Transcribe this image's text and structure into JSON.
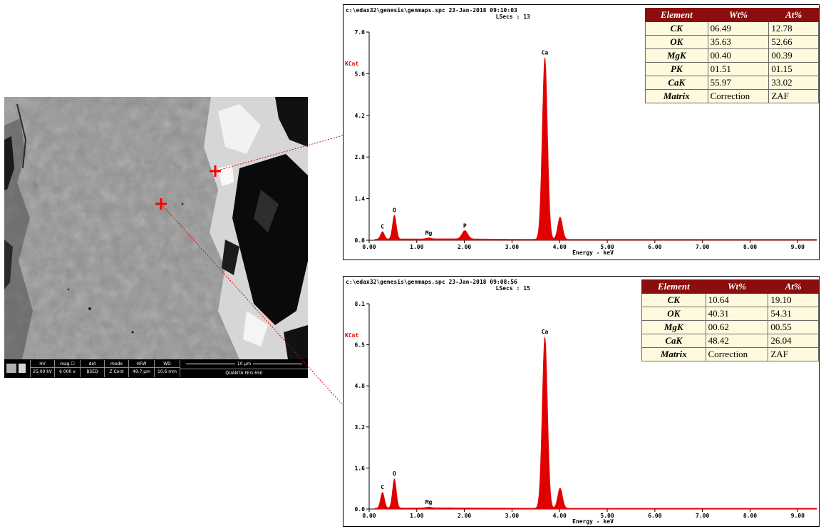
{
  "sem_image": {
    "info_bar": {
      "columns": [
        {
          "header": "HV",
          "value": "25.00 kV"
        },
        {
          "header": "mag ☐",
          "value": "6 000 x"
        },
        {
          "header": "det",
          "value": "BSED"
        },
        {
          "header": "mode",
          "value": "Z Cont"
        },
        {
          "header": "HFW",
          "value": "49.7 µm"
        },
        {
          "header": "WD",
          "value": "10.6 mm"
        }
      ],
      "scale_label": "10 µm",
      "instrument": "QUANTA FEG 650"
    }
  },
  "chart_data": [
    {
      "type": "line",
      "header_line1": "c:\\edax32\\genesis\\genmaps.spc  23-Jan-2018 09:10:03",
      "header_line2": "LSecs : 13",
      "ylabel": "KCnt",
      "xlabel": "Energy - keV",
      "xlim": [
        0,
        9.4
      ],
      "ylim": [
        0,
        7.0
      ],
      "x_tick_labels": [
        "0.00",
        "1.00",
        "2.00",
        "3.00",
        "4.00",
        "5.00",
        "6.00",
        "7.00",
        "8.00",
        "9.00"
      ],
      "y_tick_labels": [
        "0.0",
        "1.4",
        "2.8",
        "4.2",
        "5.6",
        "7.0"
      ],
      "peaks": [
        {
          "label": "C",
          "x": 0.28,
          "y": 0.25
        },
        {
          "label": "O",
          "x": 0.53,
          "y": 0.8
        },
        {
          "label": "Mg",
          "x": 1.25,
          "y": 0.03
        },
        {
          "label": "P",
          "x": 2.01,
          "y": 0.28
        },
        {
          "label": "Ca",
          "x": 3.69,
          "y": 6.1
        },
        {
          "label": "",
          "x": 4.01,
          "y": 0.75
        }
      ],
      "table": {
        "headers": [
          "Element",
          "Wt%",
          "At%"
        ],
        "rows": [
          [
            "CK",
            "06.49",
            "12.78"
          ],
          [
            "OK",
            "35.63",
            "52.66"
          ],
          [
            "MgK",
            "00.40",
            "00.39"
          ],
          [
            "PK",
            "01.51",
            "01.15"
          ],
          [
            "CaK",
            "55.97",
            "33.02"
          ],
          [
            "Matrix",
            "Correction",
            "ZAF"
          ]
        ]
      }
    },
    {
      "type": "line",
      "header_line1": "c:\\edax32\\genesis\\genmaps.spc  23-Jan-2018 09:08:56",
      "header_line2": "LSecs : 15",
      "ylabel": "KCnt",
      "xlabel": "Energy - keV",
      "xlim": [
        0,
        9.4
      ],
      "ylim": [
        0,
        8.1
      ],
      "x_tick_labels": [
        "0.00",
        "1.00",
        "2.00",
        "3.00",
        "4.00",
        "5.00",
        "6.00",
        "7.00",
        "8.00",
        "9.00"
      ],
      "y_tick_labels": [
        "0.0",
        "1.6",
        "3.2",
        "4.8",
        "6.5",
        "8.1"
      ],
      "peaks": [
        {
          "label": "C",
          "x": 0.28,
          "y": 0.62
        },
        {
          "label": "O",
          "x": 0.53,
          "y": 1.15
        },
        {
          "label": "Mg",
          "x": 1.25,
          "y": 0.03
        },
        {
          "label": "Ca",
          "x": 3.69,
          "y": 6.75
        },
        {
          "label": "",
          "x": 4.01,
          "y": 0.8
        }
      ],
      "table": {
        "headers": [
          "Element",
          "Wt%",
          "At%"
        ],
        "rows": [
          [
            "CK",
            "10.64",
            "19.10"
          ],
          [
            "OK",
            "40.31",
            "54.31"
          ],
          [
            "MgK",
            "00.62",
            "00.55"
          ],
          [
            "CaK",
            "48.42",
            "26.04"
          ],
          [
            "Matrix",
            "Correction",
            "ZAF"
          ]
        ]
      }
    }
  ],
  "colors": {
    "spectrum": "#e00000",
    "table_header": "#8b0d0d",
    "table_cell": "#fff9dd",
    "marker": "#ff0000"
  }
}
